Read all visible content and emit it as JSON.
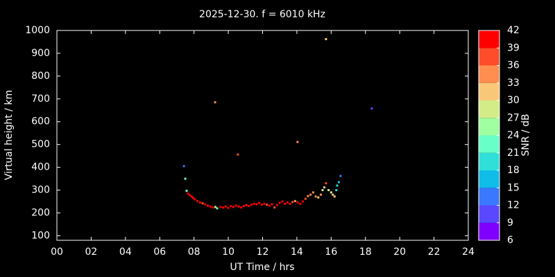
{
  "chart_data": {
    "type": "scatter",
    "title": "2025-12-30. f = 6010 kHz",
    "xlabel": "UT Time / hrs",
    "ylabel": "Virtual height / km",
    "xlim": [
      0,
      24
    ],
    "xticks": [
      {
        "value": 0,
        "label": "00"
      },
      {
        "value": 2,
        "label": "02"
      },
      {
        "value": 4,
        "label": "04"
      },
      {
        "value": 6,
        "label": "06"
      },
      {
        "value": 8,
        "label": "08"
      },
      10,
      12,
      14,
      16,
      18,
      20,
      22,
      24
    ],
    "ylim": [
      80,
      1000
    ],
    "yticks": [
      100,
      200,
      300,
      400,
      500,
      600,
      700,
      800,
      900,
      1000
    ],
    "x": [
      7.41,
      7.49,
      7.57,
      9.23,
      10.56,
      14.04,
      15.7,
      18.37,
      7.65,
      7.75,
      7.85,
      7.95,
      8.05,
      8.2,
      8.35,
      8.5,
      8.65,
      8.8,
      8.95,
      9.1,
      9.25,
      9.35,
      9.55,
      9.7,
      9.85,
      10.0,
      10.15,
      10.3,
      10.45,
      10.6,
      10.75,
      10.9,
      11.05,
      11.2,
      11.35,
      11.5,
      11.65,
      11.8,
      11.95,
      12.1,
      12.25,
      12.4,
      12.55,
      12.7,
      12.85,
      13.0,
      13.15,
      13.3,
      13.45,
      13.6,
      13.75,
      13.9,
      14.05,
      14.2,
      14.35,
      14.5,
      14.65,
      14.8,
      14.95,
      15.1,
      15.25,
      15.4,
      15.5,
      15.6,
      15.7,
      15.85,
      16.0,
      16.1,
      16.2,
      16.3,
      16.35,
      16.45,
      16.55
    ],
    "y": [
      405,
      350,
      297,
      685,
      456,
      511,
      962,
      658,
      285,
      278,
      272,
      266,
      260,
      252,
      246,
      242,
      238,
      232,
      228,
      224,
      226,
      220,
      226,
      224,
      228,
      222,
      230,
      226,
      232,
      228,
      224,
      230,
      234,
      230,
      236,
      240,
      238,
      244,
      236,
      240,
      236,
      232,
      238,
      224,
      234,
      244,
      250,
      240,
      246,
      240,
      248,
      252,
      246,
      240,
      250,
      262,
      274,
      280,
      290,
      272,
      268,
      280,
      300,
      312,
      330,
      300,
      290,
      280,
      272,
      300,
      320,
      335,
      362
    ],
    "snr": [
      14,
      22,
      21,
      35,
      36,
      35,
      31,
      10,
      40,
      40,
      40,
      40,
      40,
      40,
      39,
      38,
      40,
      40,
      40,
      40,
      27,
      22,
      40,
      40,
      40,
      40,
      40,
      40,
      40,
      40,
      40,
      40,
      40,
      40,
      40,
      40,
      40,
      40,
      40,
      40,
      38,
      40,
      40,
      36,
      40,
      40,
      40,
      40,
      40,
      40,
      38,
      33,
      40,
      40,
      40,
      38,
      35,
      34,
      33,
      33,
      32,
      33,
      28,
      30,
      36,
      27,
      28,
      30,
      32,
      20,
      18,
      17,
      14
    ],
    "colorbar": {
      "label": "SNR / dB",
      "lim": [
        6,
        42
      ],
      "ticks": [
        6,
        9,
        12,
        15,
        18,
        21,
        24,
        27,
        30,
        33,
        36,
        39,
        42
      ],
      "colors": [
        "#8000ff",
        "#5a48ff",
        "#3a78ff",
        "#10bce8",
        "#30e0d8",
        "#68ffc8",
        "#a0ffa0",
        "#d4ec88",
        "#f8c878",
        "#ff8e50",
        "#ff4c2a",
        "#ff0000"
      ]
    }
  }
}
